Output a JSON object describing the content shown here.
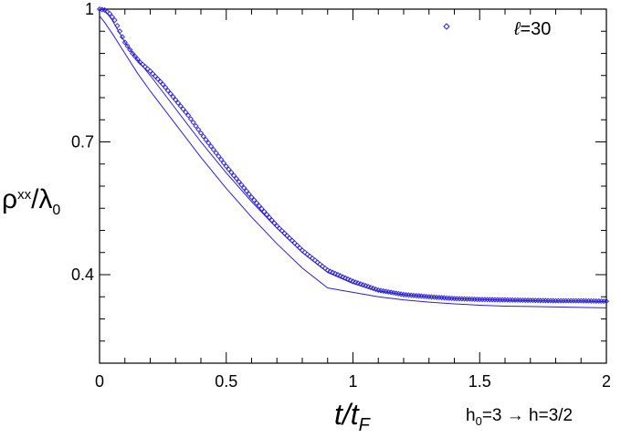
{
  "chart_data": {
    "type": "scatter",
    "xlabel_main": "t/t",
    "xlabel_sub": "F",
    "ylabel_main": "ρ",
    "ylabel_sup": "xx",
    "ylabel_rest": "/λ",
    "ylabel_sub": "0",
    "xlim": [
      0,
      2
    ],
    "ylim": [
      0.2,
      1.0
    ],
    "x_ticks": [
      0,
      0.5,
      1,
      1.5,
      2
    ],
    "x_tick_labels": [
      "0",
      "0.5",
      "1",
      "1.5",
      "2"
    ],
    "y_ticks": [
      0.4,
      0.7,
      1.0
    ],
    "y_tick_labels": [
      "0.4",
      "0.7",
      "1"
    ],
    "legend": {
      "placement": "top-right",
      "symbol": "open-diamond",
      "label_script": "ℓ",
      "label_rest": "=30"
    },
    "annotation": {
      "h0_main": "h",
      "h0_sub": "0",
      "rest": "=3 → h=3/2"
    },
    "color": "#2a1fd6",
    "series": [
      {
        "label": "ℓ=30",
        "style": "markers",
        "x": [
          0.0,
          0.02,
          0.04,
          0.06,
          0.08,
          0.1,
          0.13,
          0.16,
          0.2,
          0.25,
          0.3,
          0.35,
          0.4,
          0.5,
          0.6,
          0.7,
          0.8,
          0.9,
          1.0,
          1.05,
          1.1,
          1.2,
          1.3,
          1.4,
          1.5,
          1.6,
          1.7,
          1.8,
          1.9,
          2.0
        ],
        "y": [
          1.0,
          0.998,
          0.99,
          0.975,
          0.95,
          0.925,
          0.9,
          0.88,
          0.86,
          0.83,
          0.795,
          0.76,
          0.72,
          0.645,
          0.575,
          0.51,
          0.455,
          0.41,
          0.385,
          0.375,
          0.365,
          0.355,
          0.35,
          0.346,
          0.344,
          0.343,
          0.342,
          0.341,
          0.341,
          0.34
        ]
      },
      {
        "label": "",
        "style": "line",
        "x": [
          0.0,
          0.02,
          0.05,
          0.1,
          0.15,
          0.2,
          0.3,
          0.4,
          0.5,
          0.6,
          0.7,
          0.8,
          0.9,
          1.0,
          1.1,
          1.2,
          1.3,
          1.4,
          1.5,
          1.6,
          1.7,
          1.8,
          1.9,
          2.0
        ],
        "y": [
          1.0,
          0.998,
          0.975,
          0.925,
          0.885,
          0.85,
          0.775,
          0.7,
          0.63,
          0.565,
          0.505,
          0.45,
          0.405,
          0.38,
          0.363,
          0.355,
          0.35,
          0.346,
          0.344,
          0.342,
          0.341,
          0.34,
          0.34,
          0.339
        ]
      },
      {
        "label": "",
        "style": "line",
        "x": [
          0.0,
          0.02,
          0.05,
          0.1,
          0.15,
          0.2,
          0.3,
          0.4,
          0.5,
          0.6,
          0.7,
          0.8,
          0.9,
          1.0,
          1.1,
          1.2,
          1.3,
          1.4,
          1.5,
          1.6,
          1.7,
          1.8,
          1.9,
          2.0
        ],
        "y": [
          0.985,
          0.97,
          0.945,
          0.9,
          0.855,
          0.815,
          0.74,
          0.665,
          0.595,
          0.53,
          0.47,
          0.415,
          0.37,
          0.36,
          0.35,
          0.343,
          0.338,
          0.334,
          0.331,
          0.329,
          0.328,
          0.327,
          0.326,
          0.325
        ]
      }
    ]
  }
}
